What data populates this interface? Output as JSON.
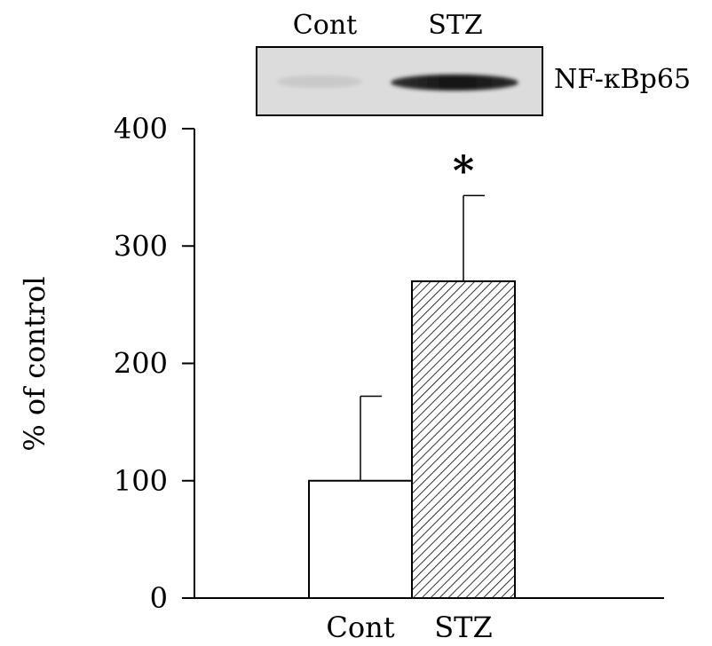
{
  "blot": {
    "lane_labels": [
      "Cont",
      "STZ"
    ],
    "band_label": "NF-κBp65"
  },
  "chart_data": {
    "type": "bar",
    "categories": [
      "Cont",
      "STZ"
    ],
    "values": [
      100,
      270
    ],
    "error_upper": [
      172,
      343
    ],
    "ylabel": "% of control",
    "yticks": [
      0,
      100,
      200,
      300,
      400
    ],
    "ylim": [
      0,
      400
    ],
    "significance": [
      null,
      "*"
    ],
    "bar_fill": [
      "white",
      "diagonal-hatch"
    ],
    "grid": false
  },
  "colors": {
    "ink": "#000000",
    "background": "#ffffff",
    "blot_bg": "#dcdcdc"
  }
}
